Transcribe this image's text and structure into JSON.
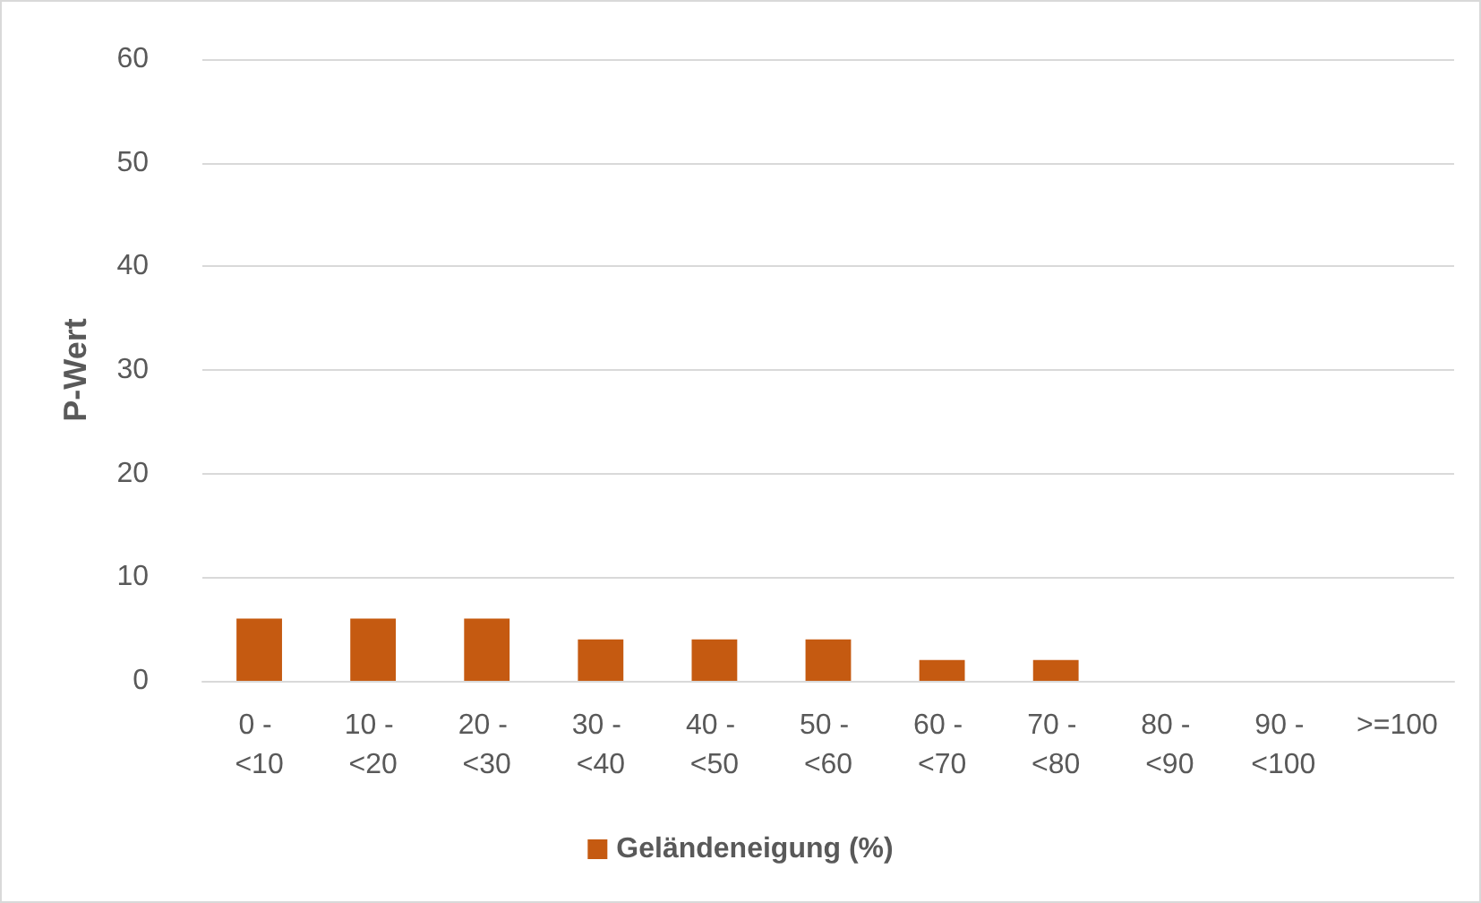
{
  "chart_data": {
    "type": "bar",
    "ylabel": "P-Wert",
    "categories": [
      "0 - <10",
      "10 - <20",
      "20 - <30",
      "30 - <40",
      "40 - <50",
      "50 - <60",
      "60 - <70",
      "70 - <80",
      "80 - <90",
      "90 - <100",
      ">=100"
    ],
    "series": [
      {
        "name": "Geländeneigung (%)",
        "color": "#c55a11",
        "values": [
          6,
          6,
          6,
          4,
          4,
          4,
          2,
          2,
          0,
          0,
          0
        ]
      }
    ],
    "ylim": [
      0,
      60
    ],
    "yticks": [
      0,
      10,
      20,
      30,
      40,
      50,
      60
    ],
    "grid": "y",
    "legend": "bottom"
  }
}
